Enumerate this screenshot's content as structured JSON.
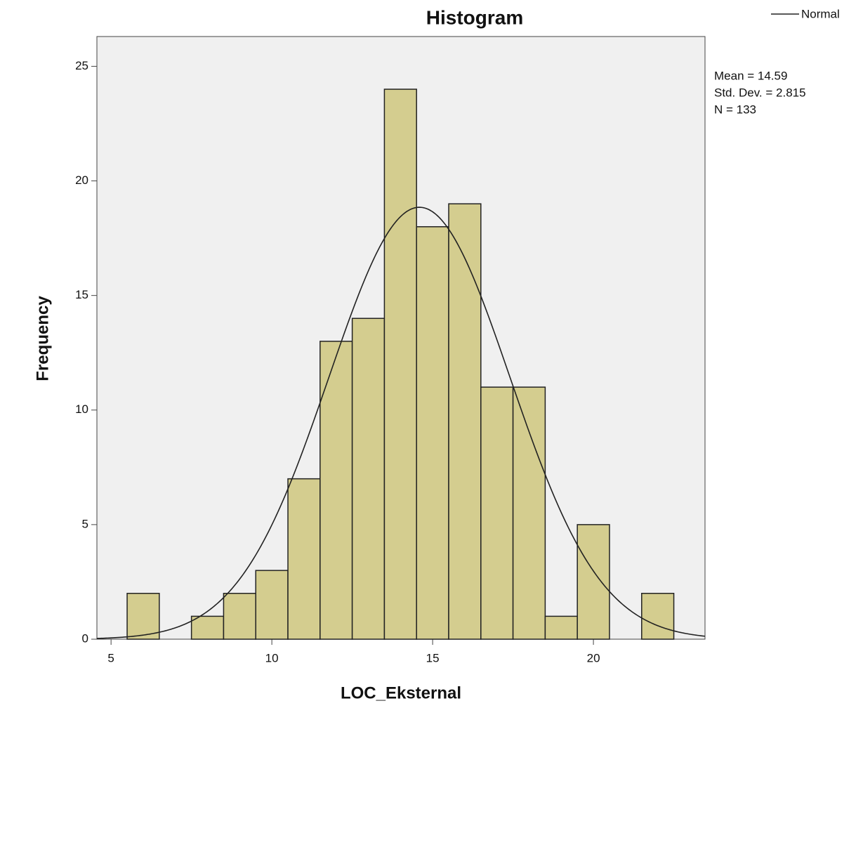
{
  "chart_data": {
    "type": "histogram",
    "title": "Histogram",
    "x_label": "LOC_Eksternal",
    "y_label": "Frequency",
    "bins": [
      5.5,
      6.5,
      7.5,
      8.5,
      9.5,
      10.5,
      11.5,
      12.5,
      13.5,
      14.5,
      15.5,
      16.5,
      17.5,
      18.5,
      19.5,
      20.5,
      21.5,
      22.5
    ],
    "values": [
      2,
      0,
      1,
      2,
      3,
      7,
      13,
      14,
      24,
      18,
      19,
      11,
      11,
      1,
      5,
      0,
      2
    ],
    "color": "#d4cd8f",
    "xlim": [
      4.56,
      23.47
    ],
    "xticks": [
      5,
      10,
      15,
      20
    ],
    "ylim": [
      0,
      26.3
    ],
    "yticks": [
      0,
      5,
      10,
      15,
      20,
      25
    ],
    "normal_curve": {
      "name": "Normal",
      "color": "#222222"
    },
    "stats": [
      {
        "value": 14.59,
        "label": "Mean = 14.59"
      },
      {
        "value": 2.815,
        "label": "Std. Dev. = 2.815"
      },
      {
        "value": 133,
        "label": "N = 133"
      }
    ]
  }
}
